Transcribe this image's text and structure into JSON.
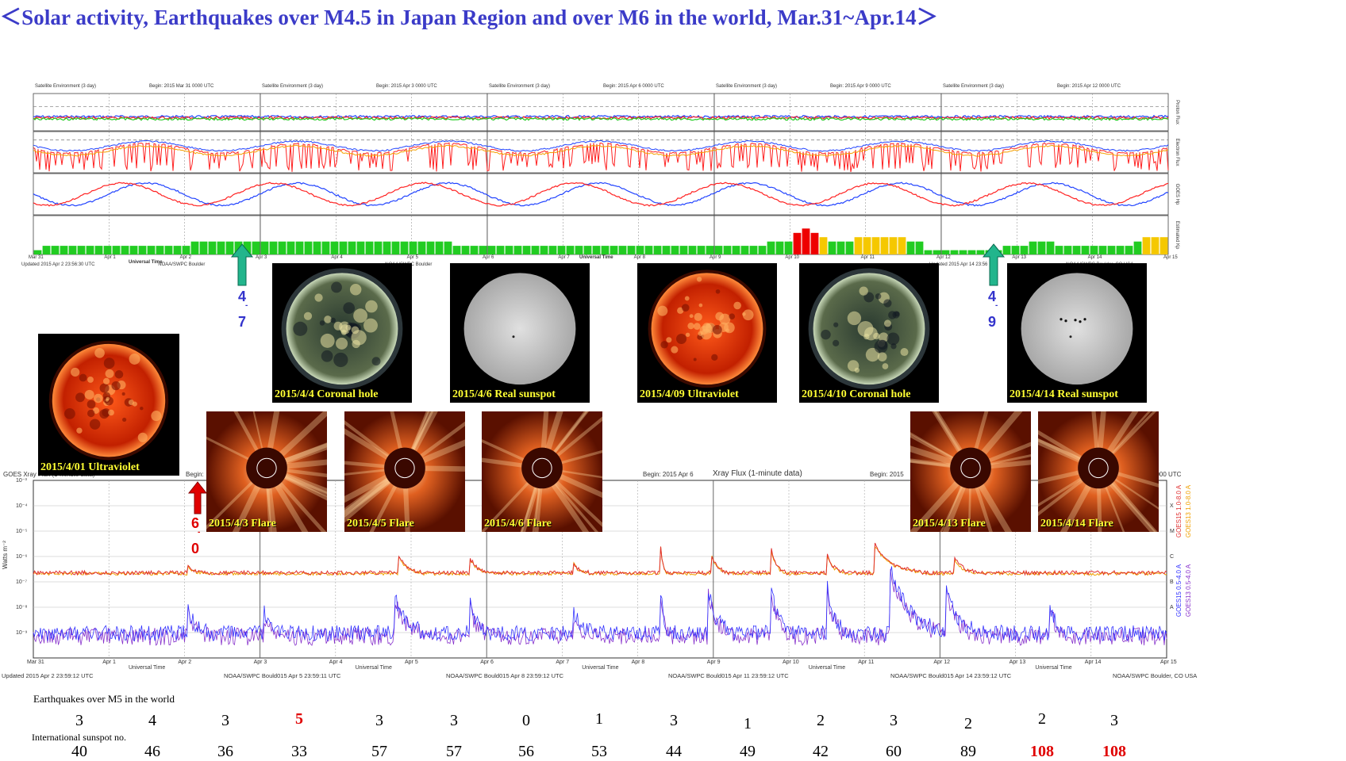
{
  "title": "＜Solar activity, Earthquakes over M4.5 in Japan Region and over M6 in the world, Mar.31~Apr.14＞",
  "satellite_panels": [
    {
      "header_left": "Satellite Environment (3 day)",
      "header_begin": "Begin:  2015 Mar 31 0000 UTC",
      "footer_left": "Updated 2015 Apr  2 23:56:30 UTC",
      "footer_right": "NOAA/SWPC Boulder"
    },
    {
      "header_left": "Satellite Environment (3 day)",
      "header_begin": "Begin:  2015 Apr 3 0000 UTC",
      "footer_left": "",
      "footer_right": "NOAA/SWPC Boulder"
    },
    {
      "header_left": "Satellite Environment (3 day)",
      "header_begin": "Begin:  2015 Apr 6 0000 UTC",
      "footer_left": "",
      "footer_right": ""
    },
    {
      "header_left": "Satellite Environment (3 day)",
      "header_begin": "Begin:  2015 Apr 9 0000 UTC",
      "footer_left": "",
      "footer_right": ""
    },
    {
      "header_left": "Satellite Environment (3 day)",
      "header_begin": "Begin:  2015 Apr 12 0000 UTC",
      "footer_left": "Updated 2015 Apr 14 23:56",
      "footer_right": "NOAA/SWPC Boulder, CO USA"
    }
  ],
  "satellite_axis_labels": [
    "Proton Flux",
    "Electron Flux",
    "GOES Hp",
    "Estimated Kp"
  ],
  "satellite_date_ticks": [
    "Mar 31",
    "Apr 1",
    "Apr 2",
    "Apr 3",
    "Apr 4",
    "Apr 5",
    "Apr 6",
    "Apr 7",
    "Apr 8",
    "Apr 9",
    "Apr 10",
    "Apr 11",
    "Apr 12",
    "Apr 13",
    "Apr 14",
    "Apr 15"
  ],
  "satellite_universal_time": "Universal Time",
  "kp_values": [
    1,
    2,
    2,
    2,
    2,
    2,
    2,
    2,
    2,
    2,
    2,
    2,
    2,
    2,
    2,
    2,
    2,
    2,
    3,
    3,
    3,
    3,
    3,
    3,
    3,
    3,
    3,
    3,
    3,
    3,
    3,
    3,
    3,
    3,
    3,
    3,
    3,
    3,
    3,
    3,
    3,
    3,
    3,
    3,
    3,
    3,
    3,
    3,
    2,
    2,
    2,
    2,
    2,
    2,
    2,
    2,
    2,
    2,
    2,
    2,
    2,
    2,
    2,
    2,
    2,
    2,
    2,
    2,
    2,
    2,
    2,
    2,
    2,
    2,
    2,
    2,
    2,
    2,
    2,
    2,
    2,
    2,
    2,
    2,
    3,
    3,
    3,
    5,
    6,
    5,
    4,
    3,
    3,
    3,
    4,
    4,
    4,
    4,
    4,
    4,
    3,
    3,
    1,
    1,
    1,
    1,
    1,
    1,
    1,
    1,
    1,
    2,
    2,
    2,
    3,
    3,
    3,
    2,
    2,
    2,
    2,
    2,
    2,
    2,
    2,
    2,
    3,
    4,
    4,
    4
  ],
  "kp_colors": {
    "low": "#22cc22",
    "mid": "#f5c800",
    "high": "#ee0000"
  },
  "xray_panel": {
    "header_left": "GOES Xray Flux (1-minute data)",
    "header_begin_1": "Begin:",
    "header_begin_2": "Begin:  2015 Apr 6",
    "header_xray": "Xray Flux (1-minute data)",
    "header_begin_3": "Begin:  2015",
    "header_right": "0000 UTC",
    "y_label": "Watts m⁻²",
    "y_ticks": [
      "10⁻³",
      "10⁻⁴",
      "10⁻⁵",
      "10⁻⁶",
      "10⁻⁷",
      "10⁻⁸",
      "10⁻⁹"
    ],
    "right_letters": [
      "X",
      "M",
      "C",
      "B",
      "A"
    ],
    "legend": [
      "GOES15 1.0-8.0 A",
      "GOES13 1.0-8.0 A",
      "GOES15 0.5-4.0 A",
      "GOES13 0.5-4.0 A"
    ],
    "date_ticks": [
      "Mar 31",
      "Apr 1",
      "Apr 2",
      "Apr 3",
      "Apr 4",
      "Apr 5",
      "Apr 6",
      "Apr 7",
      "Apr 8",
      "Apr 9",
      "Apr 10",
      "Apr 11",
      "Apr 12",
      "Apr 13",
      "Apr 14",
      "Apr 15"
    ],
    "universal_time": "Universal Time",
    "footers": [
      "Updated 2015 Apr  2 23:59:12 UTC",
      "NOAA/SWPC Bould015 Apr  5 23:59:11 UTC",
      "NOAA/SWPC Bould015 Apr  8 23:59:12 UTC",
      "NOAA/SWPC Bould015 Apr 11 23:59:12 UTC",
      "NOAA/SWPC Bould015 Apr 14 23:59:12 UTC",
      "NOAA/SWPC Boulder, CO USA"
    ]
  },
  "colors": {
    "title": "#3b3bc8",
    "caption": "#ffff33",
    "red_arrow": "#e00000",
    "green_arrow": "#22b58c",
    "blue_note": "#3333cc"
  },
  "images": [
    {
      "id": "uv0401",
      "caption": "2015/4/01 Ultraviolet",
      "kind": "uv"
    },
    {
      "id": "ch0404",
      "caption": "2015/4/4 Coronal hole",
      "kind": "coronal"
    },
    {
      "id": "ss0406",
      "caption": "2015/4/6 Real sunspot",
      "kind": "sunspot"
    },
    {
      "id": "uv0409",
      "caption": "2015/4/09 Ultraviolet",
      "kind": "uv"
    },
    {
      "id": "ch0410",
      "caption": "2015/4/10 Coronal hole",
      "kind": "coronal"
    },
    {
      "id": "ss0414",
      "caption": "2015/4/14 Real sunspot",
      "kind": "sunspot"
    },
    {
      "id": "fl0403",
      "caption": "2015/4/3 Flare",
      "kind": "flare"
    },
    {
      "id": "fl0405",
      "caption": "2015/4/5 Flare",
      "kind": "flare"
    },
    {
      "id": "fl0406",
      "caption": "2015/4/6 Flare",
      "kind": "flare"
    },
    {
      "id": "fl0413",
      "caption": "2015/4/13 Flare",
      "kind": "flare"
    },
    {
      "id": "fl0414",
      "caption": "2015/4/14 Flare",
      "kind": "flare"
    }
  ],
  "arrow_notes": {
    "green1": [
      "4",
      "-",
      "7"
    ],
    "green2": [
      "4",
      "-",
      "9"
    ],
    "red1": [
      "6",
      "-",
      "0"
    ]
  },
  "eq_label": "Earthquakes over M5 in the world",
  "eq_counts": [
    {
      "v": "3"
    },
    {
      "v": "4"
    },
    {
      "v": "3"
    },
    {
      "v": "5",
      "hl": true
    },
    {
      "v": "3"
    },
    {
      "v": "3"
    },
    {
      "v": "0"
    },
    {
      "v": "1"
    },
    {
      "v": "3"
    },
    {
      "v": "1"
    },
    {
      "v": "2"
    },
    {
      "v": "3"
    },
    {
      "v": "2"
    },
    {
      "v": "2"
    },
    {
      "v": "3"
    }
  ],
  "sunspot_label": "International sunspot no.",
  "sunspot_counts": [
    {
      "v": "40"
    },
    {
      "v": "46"
    },
    {
      "v": "36"
    },
    {
      "v": "33"
    },
    {
      "v": "57"
    },
    {
      "v": "57"
    },
    {
      "v": "56"
    },
    {
      "v": "53"
    },
    {
      "v": "44"
    },
    {
      "v": "49"
    },
    {
      "v": "42"
    },
    {
      "v": "60"
    },
    {
      "v": "89"
    },
    {
      "v": "108",
      "hl": true
    },
    {
      "v": "108",
      "hl": true
    }
  ]
}
